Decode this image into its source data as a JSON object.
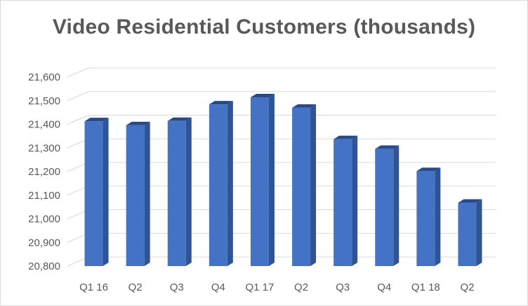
{
  "chart_data": {
    "type": "bar",
    "style": "3d-column",
    "title": "Video Residential Customers (thousands)",
    "categories": [
      "Q1 16",
      "Q2",
      "Q3",
      "Q4",
      "Q1 17",
      "Q2",
      "Q3",
      "Q4",
      "Q1 18",
      "Q2"
    ],
    "values": [
      21413,
      21396,
      21414,
      21484,
      21514,
      21470,
      21337,
      21296,
      21202,
      21068
    ],
    "ylim": [
      20800,
      21600
    ],
    "ytick_step": 100,
    "ytick_labels": [
      "20,800",
      "20,900",
      "21,000",
      "21,100",
      "21,200",
      "21,300",
      "21,400",
      "21,500",
      "21,600"
    ],
    "xlabel": "",
    "ylabel": "",
    "grid": true,
    "legend": "none",
    "colors": {
      "bar_front": "#4472c4",
      "bar_side": "#2f5496",
      "bar_top": "#2a4a86",
      "gridline": "#d9d9d9",
      "text": "#595959"
    }
  }
}
